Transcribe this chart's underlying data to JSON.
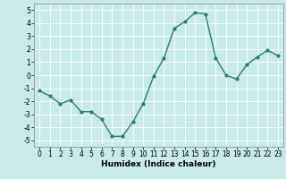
{
  "x": [
    0,
    1,
    2,
    3,
    4,
    5,
    6,
    7,
    8,
    9,
    10,
    11,
    12,
    13,
    14,
    15,
    16,
    17,
    18,
    19,
    20,
    21,
    22,
    23
  ],
  "y": [
    -1.2,
    -1.6,
    -2.2,
    -1.9,
    -2.8,
    -2.8,
    -3.4,
    -4.7,
    -4.7,
    -3.6,
    -2.2,
    -0.1,
    1.3,
    3.6,
    4.1,
    4.8,
    4.7,
    1.3,
    0.0,
    -0.3,
    0.8,
    1.4,
    1.9,
    1.5
  ],
  "line_color": "#2e7d6e",
  "marker_color": "#2e7d6e",
  "bg_color": "#c8eae8",
  "grid_color": "#ffffff",
  "xlabel": "Humidex (Indice chaleur)",
  "ylabel": "",
  "xlim": [
    -0.5,
    23.5
  ],
  "ylim": [
    -5.5,
    5.5
  ],
  "yticks": [
    -5,
    -4,
    -3,
    -2,
    -1,
    0,
    1,
    2,
    3,
    4,
    5
  ],
  "xticks": [
    0,
    1,
    2,
    3,
    4,
    5,
    6,
    7,
    8,
    9,
    10,
    11,
    12,
    13,
    14,
    15,
    16,
    17,
    18,
    19,
    20,
    21,
    22,
    23
  ],
  "tick_fontsize": 5.5,
  "xlabel_fontsize": 6.5
}
